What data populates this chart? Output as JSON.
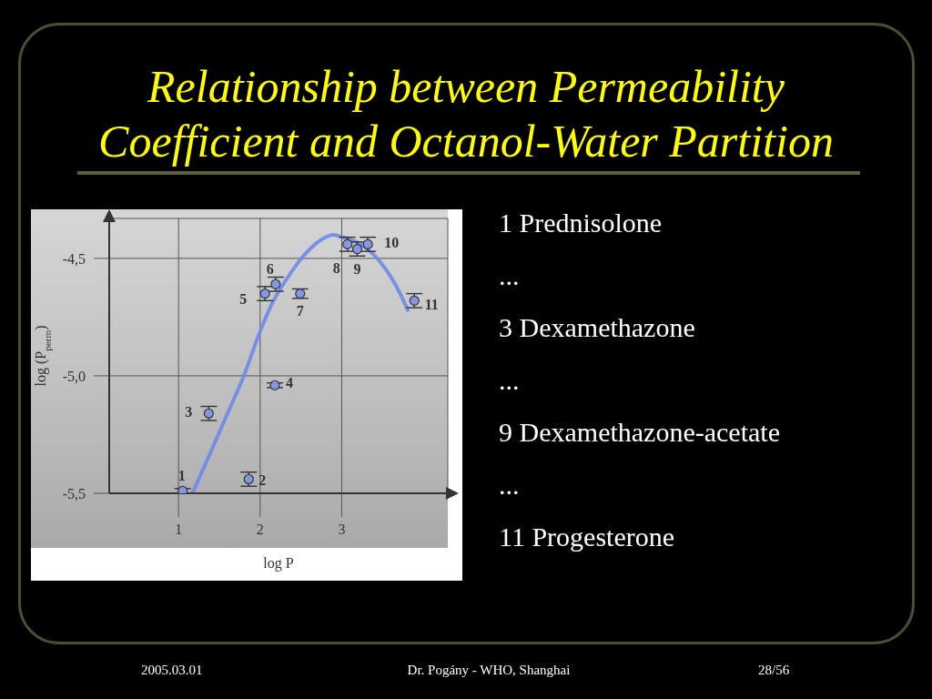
{
  "chart_data": {
    "type": "scatter",
    "title": "Relationship between Permeability Coefficient and Octanol-Water Partition",
    "xlabel": "log P",
    "ylabel": "log (P$_{perm}$)",
    "xlim": [
      0.15,
      4.3
    ],
    "ylim": [
      -5.5,
      -4.33
    ],
    "xticks": [
      1,
      2,
      3
    ],
    "yticks": [
      {
        "value": -5.5,
        "label": "-5,5"
      },
      {
        "value": -5.0,
        "label": "-5,0"
      },
      {
        "value": -4.5,
        "label": "-4,5"
      }
    ],
    "grid": true,
    "series": [
      {
        "type": "line",
        "marker": "none",
        "line_style": "solid",
        "color": "#6f88ea",
        "x": [
          1.17,
          1.4,
          1.6,
          1.8,
          2.0,
          2.15,
          2.34,
          2.53,
          2.71,
          2.9,
          3.01,
          3.23,
          3.46,
          3.64,
          3.81
        ],
        "values": [
          -5.5,
          -5.32,
          -5.16,
          -5.0,
          -4.81,
          -4.69,
          -4.58,
          -4.49,
          -4.43,
          -4.4,
          -4.41,
          -4.44,
          -4.51,
          -4.6,
          -4.72
        ]
      },
      {
        "marker": "circle",
        "color": "#8497e6",
        "x": [
          1.05,
          1.86,
          1.37,
          2.18,
          2.06,
          2.19,
          2.49,
          3.07,
          3.19,
          3.32,
          3.89
        ],
        "values": [
          -5.49,
          -5.44,
          -5.16,
          -5.04,
          -4.65,
          -4.61,
          -4.65,
          -4.44,
          -4.46,
          -4.44,
          -4.68
        ],
        "errors": [
          0.01,
          0.03,
          0.03,
          0.01,
          0.03,
          0.03,
          0.02,
          0.03,
          0.03,
          0.03,
          0.03
        ]
      }
    ],
    "annotations": [
      {
        "text": "1",
        "x": 1.05,
        "y": -5.49
      },
      {
        "text": "2",
        "x": 1.86,
        "y": -5.44
      },
      {
        "text": "3",
        "x": 1.37,
        "y": -5.16
      },
      {
        "text": "4",
        "x": 2.18,
        "y": -5.04
      },
      {
        "text": "5",
        "x": 2.06,
        "y": -4.65
      },
      {
        "text": "6",
        "x": 2.19,
        "y": -4.61
      },
      {
        "text": "7",
        "x": 2.49,
        "y": -4.65
      },
      {
        "text": "8",
        "x": 3.07,
        "y": -4.44
      },
      {
        "text": "9",
        "x": 3.19,
        "y": -4.46
      },
      {
        "text": "10",
        "x": 3.32,
        "y": -4.44
      },
      {
        "text": "11",
        "x": 3.89,
        "y": -4.68
      },
      "1 Prednisolone",
      "...",
      "3 Dexamethazone",
      "...",
      "9 Dexamethazone-acetate",
      "...",
      "11 Progesterone",
      "2005.03.01",
      "Dr. Pogány - WHO, Shanghai",
      "28/56"
    ]
  }
}
